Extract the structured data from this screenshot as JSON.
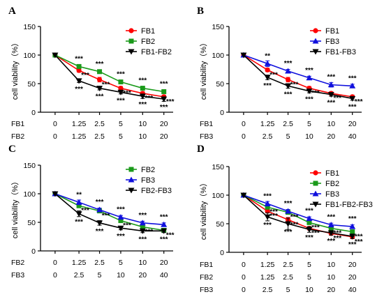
{
  "colors": {
    "red": "#ff0000",
    "green": "#1a9a1a",
    "blue": "#1010dd",
    "black": "#000000"
  },
  "chart_data": [
    {
      "type": "line",
      "panel_label": "A",
      "ylabel": "cell viability（%）",
      "ylim": [
        0,
        150
      ],
      "yticks": [
        "0",
        "50",
        "100",
        "150"
      ],
      "dose_rows": [
        {
          "label": "FB1",
          "values": [
            "0",
            "1.25",
            "2.5",
            "5",
            "10",
            "20"
          ]
        },
        {
          "label": "FB2",
          "values": [
            "0",
            "1.25",
            "2.5",
            "5",
            "10",
            "20"
          ]
        }
      ],
      "series": [
        {
          "name": "FB1",
          "color": "red",
          "marker": "circle",
          "values": [
            100,
            73,
            57,
            42,
            33,
            27
          ],
          "errors": [
            0,
            3,
            4,
            3,
            3,
            3
          ],
          "stars": [
            "",
            "***",
            "***",
            "***",
            "***",
            "***"
          ]
        },
        {
          "name": "FB2",
          "color": "green",
          "marker": "square",
          "values": [
            100,
            80,
            71,
            53,
            42,
            36
          ],
          "errors": [
            0,
            3,
            2,
            3,
            3,
            3
          ],
          "stars": [
            "",
            "***",
            "***",
            "***",
            "***",
            "***"
          ]
        },
        {
          "name": "FB1-FB2",
          "color": "black",
          "marker": "tri-down",
          "values": [
            100,
            55,
            42,
            35,
            28,
            23
          ],
          "errors": [
            0,
            3,
            3,
            3,
            4,
            4
          ],
          "stars": [
            "",
            "***",
            "***",
            "***",
            "***",
            "***"
          ]
        }
      ]
    },
    {
      "type": "line",
      "panel_label": "B",
      "ylabel": "cell viability（%）",
      "ylim": [
        0,
        150
      ],
      "yticks": [
        "0",
        "50",
        "100",
        "150"
      ],
      "dose_rows": [
        {
          "label": "FB1",
          "values": [
            "0",
            "1.25",
            "2.5",
            "5",
            "10",
            "20"
          ]
        },
        {
          "label": "FB3",
          "values": [
            "0",
            "2.5",
            "5",
            "10",
            "20",
            "40"
          ]
        }
      ],
      "series": [
        {
          "name": "FB1",
          "color": "red",
          "marker": "circle",
          "values": [
            100,
            74,
            57,
            42,
            33,
            27
          ],
          "errors": [
            0,
            3,
            4,
            3,
            3,
            3
          ],
          "stars": [
            "",
            "***",
            "***",
            "***",
            "***",
            "***"
          ]
        },
        {
          "name": "FB3",
          "color": "blue",
          "marker": "tri-up",
          "values": [
            100,
            85,
            72,
            60,
            48,
            46
          ],
          "errors": [
            0,
            5,
            3,
            3,
            4,
            3
          ],
          "stars": [
            "",
            "**",
            "***",
            "***",
            "***",
            "***"
          ]
        },
        {
          "name": "FB1-FB3",
          "color": "black",
          "marker": "tri-down",
          "values": [
            100,
            61,
            46,
            37,
            31,
            24
          ],
          "errors": [
            0,
            4,
            4,
            3,
            3,
            3
          ],
          "stars": [
            "",
            "***",
            "***",
            "***",
            "***",
            "***"
          ]
        }
      ]
    },
    {
      "type": "line",
      "panel_label": "C",
      "ylabel": "cell viability（%）",
      "ylim": [
        0,
        150
      ],
      "yticks": [
        "0",
        "50",
        "100",
        "150"
      ],
      "dose_rows": [
        {
          "label": "FB2",
          "values": [
            "0",
            "1.25",
            "2.5",
            "5",
            "10",
            "20"
          ]
        },
        {
          "label": "FB3",
          "values": [
            "0",
            "2.5",
            "5",
            "10",
            "20",
            "40"
          ]
        }
      ],
      "series": [
        {
          "name": "FB2",
          "color": "green",
          "marker": "square",
          "values": [
            100,
            79,
            70,
            53,
            42,
            36
          ],
          "errors": [
            0,
            3,
            3,
            3,
            3,
            3
          ],
          "stars": [
            "",
            "***",
            "***",
            "***",
            "***",
            "***"
          ]
        },
        {
          "name": "FB3",
          "color": "blue",
          "marker": "tri-up",
          "values": [
            100,
            85,
            72,
            59,
            49,
            46
          ],
          "errors": [
            0,
            4,
            3,
            3,
            3,
            3
          ],
          "stars": [
            "",
            "**",
            "***",
            "***",
            "***",
            "***"
          ]
        },
        {
          "name": "FB2-FB3",
          "color": "black",
          "marker": "tri-down",
          "values": [
            100,
            65,
            49,
            40,
            35,
            35
          ],
          "errors": [
            0,
            5,
            4,
            3,
            3,
            3
          ],
          "stars": [
            "",
            "***",
            "***",
            "***",
            "***",
            "***"
          ]
        }
      ]
    },
    {
      "type": "line",
      "panel_label": "D",
      "ylabel": "cell viability（%）",
      "ylim": [
        0,
        150
      ],
      "yticks": [
        "0",
        "50",
        "100",
        "150"
      ],
      "dose_rows": [
        {
          "label": "FB1",
          "values": [
            "0",
            "1.25",
            "2.5",
            "5",
            "10",
            "20"
          ]
        },
        {
          "label": "FB2",
          "values": [
            "0",
            "1.25",
            "2.5",
            "5",
            "10",
            "20"
          ]
        },
        {
          "label": "FB3",
          "values": [
            "0",
            "2.5",
            "5",
            "10",
            "20",
            "40"
          ]
        }
      ],
      "series": [
        {
          "name": "FB1",
          "color": "red",
          "marker": "circle",
          "values": [
            100,
            72,
            57,
            42,
            33,
            27
          ],
          "errors": [
            0,
            3,
            4,
            3,
            3,
            3
          ],
          "stars": [
            "",
            "***",
            "***",
            "***",
            "***",
            "***"
          ]
        },
        {
          "name": "FB2",
          "color": "green",
          "marker": "square",
          "values": [
            100,
            79,
            70,
            52,
            42,
            36
          ],
          "errors": [
            0,
            3,
            3,
            3,
            3,
            3
          ],
          "stars": [
            "",
            "***",
            "***",
            "***",
            "***",
            "***"
          ]
        },
        {
          "name": "FB3",
          "color": "blue",
          "marker": "tri-up",
          "values": [
            100,
            85,
            72,
            59,
            48,
            45
          ],
          "errors": [
            0,
            4,
            3,
            3,
            3,
            3
          ],
          "stars": [
            "",
            "***",
            "***",
            "***",
            "***",
            "***"
          ]
        },
        {
          "name": "FB1-FB2-FB3",
          "color": "black",
          "marker": "tri-down",
          "values": [
            100,
            62,
            50,
            40,
            34,
            28
          ],
          "errors": [
            0,
            7,
            10,
            5,
            4,
            4
          ],
          "stars": [
            "",
            "***",
            "***",
            "***",
            "***",
            "***"
          ]
        }
      ]
    }
  ]
}
